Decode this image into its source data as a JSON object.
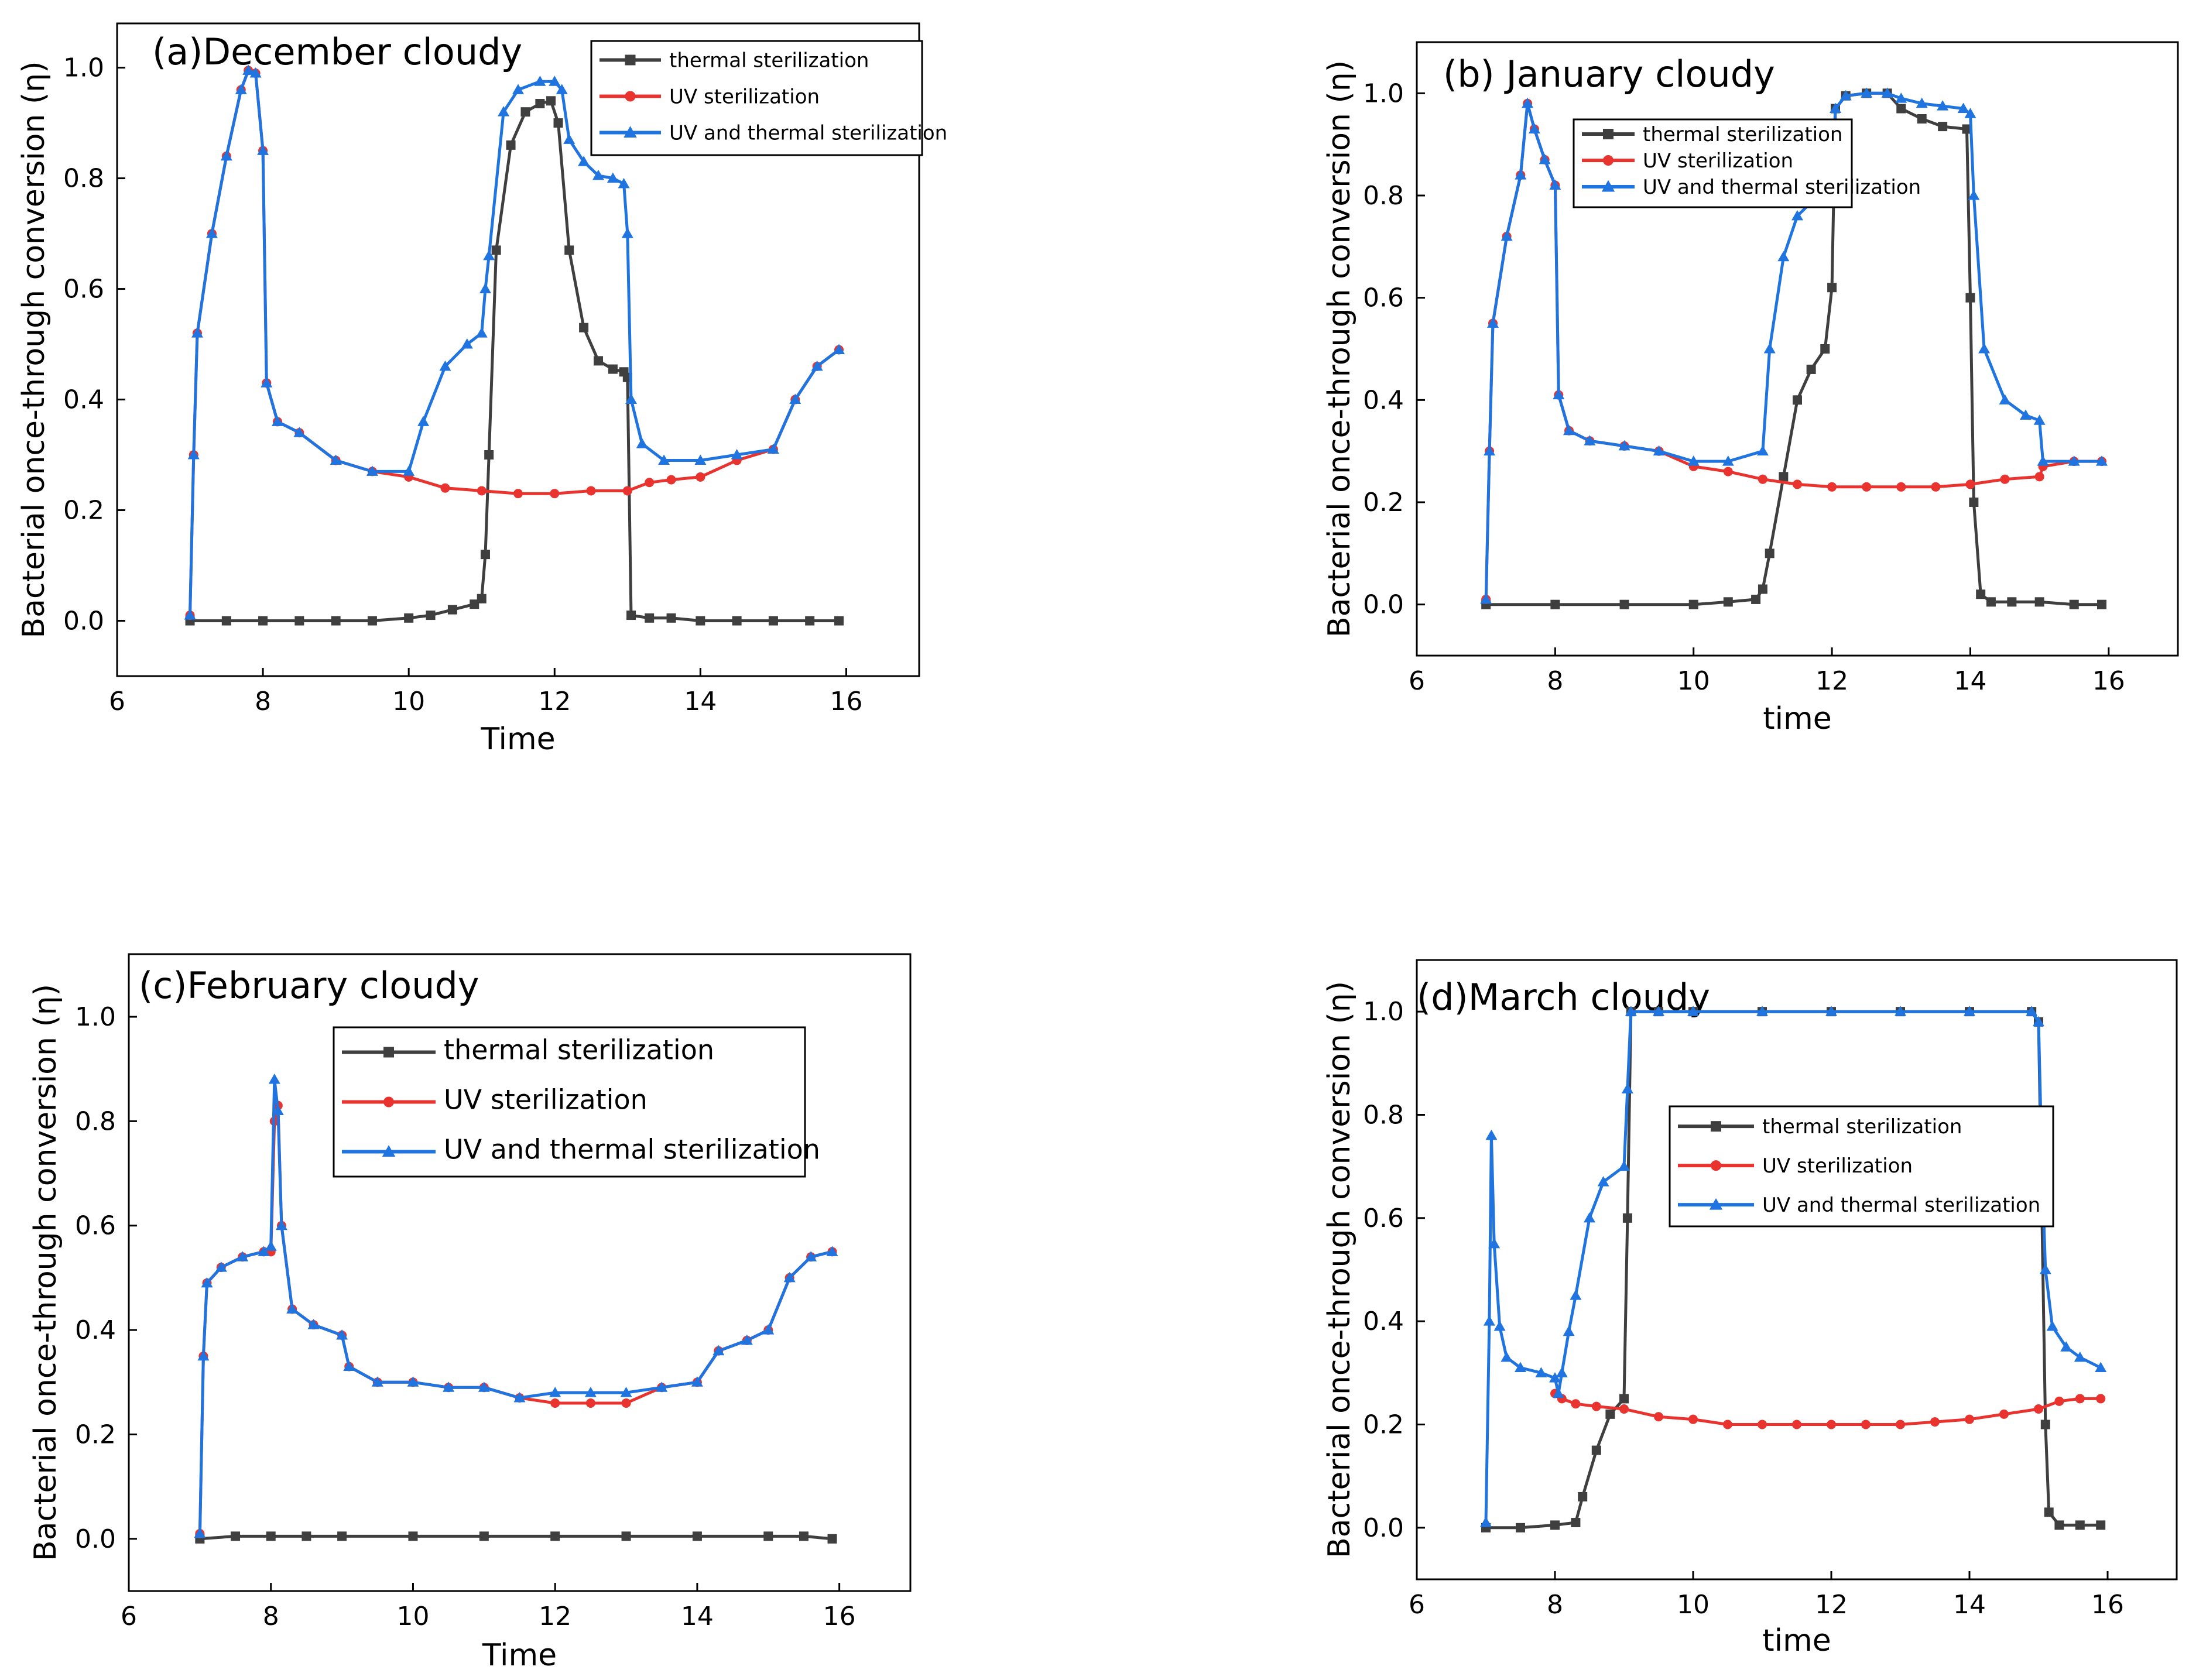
{
  "chart_data": [
    {
      "type": "line",
      "title": "(a)December cloudy",
      "xlabel": "Time",
      "ylabel": "Bacterial once-through conversion  (η)",
      "xlim": [
        6,
        17
      ],
      "ylim": [
        -0.1,
        1.08
      ],
      "xticks": [
        "6",
        "8",
        "10",
        "12",
        "14",
        "16"
      ],
      "yticks": [
        "0.0",
        "0.2",
        "0.4",
        "0.6",
        "0.8",
        "1.0"
      ],
      "legend_labels": [
        "thermal sterilization",
        "UV sterilization",
        "UV and thermal sterilization"
      ],
      "legend_position": "top-right",
      "series": [
        {
          "name": "thermal sterilization",
          "color": "#3f3f3f",
          "marker": "square",
          "x": [
            7.0,
            7.5,
            8.0,
            8.5,
            9.0,
            9.5,
            10.0,
            10.3,
            10.6,
            10.9,
            11.0,
            11.05,
            11.1,
            11.2,
            11.4,
            11.6,
            11.8,
            11.95,
            12.05,
            12.2,
            12.4,
            12.6,
            12.8,
            12.95,
            13.0,
            13.05,
            13.3,
            13.6,
            14.0,
            14.5,
            15.0,
            15.5,
            15.9
          ],
          "y": [
            0.0,
            0.0,
            0.0,
            0.0,
            0.0,
            0.0,
            0.005,
            0.01,
            0.02,
            0.03,
            0.04,
            0.12,
            0.3,
            0.67,
            0.86,
            0.92,
            0.935,
            0.94,
            0.9,
            0.67,
            0.53,
            0.47,
            0.455,
            0.45,
            0.44,
            0.01,
            0.005,
            0.005,
            0.0,
            0.0,
            0.0,
            0.0,
            0.0
          ]
        },
        {
          "name": "UV sterilization",
          "color": "#e8332f",
          "marker": "circle",
          "x": [
            7.0,
            7.05,
            7.1,
            7.3,
            7.5,
            7.7,
            7.8,
            7.9,
            8.0,
            8.05,
            8.2,
            8.5,
            9.0,
            9.5,
            10.0,
            10.5,
            11.0,
            11.5,
            12.0,
            12.5,
            13.0,
            13.3,
            13.6,
            14.0,
            14.5,
            15.0,
            15.3,
            15.6,
            15.9
          ],
          "y": [
            0.01,
            0.3,
            0.52,
            0.7,
            0.84,
            0.96,
            0.995,
            0.99,
            0.85,
            0.43,
            0.36,
            0.34,
            0.29,
            0.27,
            0.26,
            0.24,
            0.235,
            0.23,
            0.23,
            0.235,
            0.235,
            0.25,
            0.255,
            0.26,
            0.29,
            0.31,
            0.4,
            0.46,
            0.49
          ]
        },
        {
          "name": "UV and thermal sterilization",
          "color": "#1f74e0",
          "marker": "triangle",
          "x": [
            7.0,
            7.05,
            7.1,
            7.3,
            7.5,
            7.7,
            7.8,
            7.9,
            8.0,
            8.05,
            8.2,
            8.5,
            9.0,
            9.5,
            10.0,
            10.2,
            10.5,
            10.8,
            11.0,
            11.05,
            11.1,
            11.3,
            11.5,
            11.8,
            12.0,
            12.1,
            12.2,
            12.4,
            12.6,
            12.8,
            12.95,
            13.0,
            13.05,
            13.2,
            13.5,
            14.0,
            14.5,
            15.0,
            15.3,
            15.6,
            15.9
          ],
          "y": [
            0.01,
            0.3,
            0.52,
            0.7,
            0.84,
            0.96,
            0.995,
            0.99,
            0.85,
            0.43,
            0.36,
            0.34,
            0.29,
            0.27,
            0.27,
            0.36,
            0.46,
            0.5,
            0.52,
            0.6,
            0.66,
            0.92,
            0.96,
            0.975,
            0.975,
            0.96,
            0.87,
            0.83,
            0.805,
            0.8,
            0.79,
            0.7,
            0.4,
            0.32,
            0.29,
            0.29,
            0.3,
            0.31,
            0.4,
            0.46,
            0.49
          ]
        }
      ]
    },
    {
      "type": "line",
      "title": "(b) January cloudy",
      "xlabel": "time",
      "ylabel": "Bacterial once-through conversion  (η)",
      "xlim": [
        6,
        17
      ],
      "ylim": [
        -0.1,
        1.1
      ],
      "xticks": [
        "6",
        "8",
        "10",
        "12",
        "14",
        "16"
      ],
      "yticks": [
        "0.0",
        "0.2",
        "0.4",
        "0.6",
        "0.8",
        "1.0"
      ],
      "legend_labels": [
        "thermal sterilization",
        "UV sterilization",
        "UV and thermal sterilization"
      ],
      "legend_position": "top-center",
      "series": [
        {
          "name": "thermal sterilization",
          "color": "#3f3f3f",
          "marker": "square",
          "x": [
            7.0,
            8.0,
            9.0,
            10.0,
            10.5,
            10.9,
            11.0,
            11.1,
            11.3,
            11.5,
            11.7,
            11.9,
            12.0,
            12.05,
            12.2,
            12.5,
            12.8,
            13.0,
            13.3,
            13.6,
            13.95,
            14.0,
            14.05,
            14.15,
            14.3,
            14.6,
            15.0,
            15.5,
            15.9
          ],
          "y": [
            0.0,
            0.0,
            0.0,
            0.0,
            0.005,
            0.01,
            0.03,
            0.1,
            0.25,
            0.4,
            0.46,
            0.5,
            0.62,
            0.97,
            0.995,
            1.0,
            1.0,
            0.97,
            0.95,
            0.935,
            0.93,
            0.6,
            0.2,
            0.02,
            0.005,
            0.005,
            0.005,
            0.0,
            0.0
          ]
        },
        {
          "name": "UV sterilization",
          "color": "#e8332f",
          "marker": "circle",
          "x": [
            7.0,
            7.05,
            7.1,
            7.3,
            7.5,
            7.6,
            7.7,
            7.85,
            8.0,
            8.05,
            8.2,
            8.5,
            9.0,
            9.5,
            10.0,
            10.5,
            11.0,
            11.5,
            12.0,
            12.5,
            13.0,
            13.5,
            14.0,
            14.5,
            15.0,
            15.05,
            15.5,
            15.9
          ],
          "y": [
            0.01,
            0.3,
            0.55,
            0.72,
            0.84,
            0.98,
            0.93,
            0.87,
            0.82,
            0.41,
            0.34,
            0.32,
            0.31,
            0.3,
            0.27,
            0.26,
            0.245,
            0.235,
            0.23,
            0.23,
            0.23,
            0.23,
            0.235,
            0.245,
            0.25,
            0.27,
            0.28,
            0.28
          ]
        },
        {
          "name": "UV and thermal sterilization",
          "color": "#1f74e0",
          "marker": "triangle",
          "x": [
            7.0,
            7.05,
            7.1,
            7.3,
            7.5,
            7.6,
            7.7,
            7.85,
            8.0,
            8.05,
            8.2,
            8.5,
            9.0,
            9.5,
            10.0,
            10.5,
            11.0,
            11.1,
            11.3,
            11.5,
            11.8,
            12.0,
            12.05,
            12.2,
            12.5,
            12.8,
            13.0,
            13.3,
            13.6,
            13.9,
            14.0,
            14.05,
            14.2,
            14.5,
            14.8,
            15.0,
            15.05,
            15.5,
            15.9
          ],
          "y": [
            0.01,
            0.3,
            0.55,
            0.72,
            0.84,
            0.98,
            0.93,
            0.87,
            0.82,
            0.41,
            0.34,
            0.32,
            0.31,
            0.3,
            0.28,
            0.28,
            0.3,
            0.5,
            0.68,
            0.76,
            0.8,
            0.82,
            0.97,
            0.995,
            1.0,
            1.0,
            0.99,
            0.98,
            0.975,
            0.97,
            0.96,
            0.8,
            0.5,
            0.4,
            0.37,
            0.36,
            0.28,
            0.28,
            0.28
          ]
        }
      ]
    },
    {
      "type": "line",
      "title": "(c)February cloudy",
      "xlabel": "Time",
      "ylabel": "Bacterial once-through conversion  (η)",
      "xlim": [
        6,
        17
      ],
      "ylim": [
        -0.1,
        1.12
      ],
      "xticks": [
        "6",
        "8",
        "10",
        "12",
        "14",
        "16"
      ],
      "yticks": [
        "0.0",
        "0.2",
        "0.4",
        "0.6",
        "0.8",
        "1.0"
      ],
      "legend_labels": [
        "thermal sterilization",
        "UV sterilization",
        "UV and thermal sterilization"
      ],
      "legend_position": "top-right",
      "series": [
        {
          "name": "thermal sterilization",
          "color": "#3f3f3f",
          "marker": "square",
          "x": [
            7.0,
            7.5,
            8.0,
            8.5,
            9.0,
            10.0,
            11.0,
            12.0,
            13.0,
            14.0,
            15.0,
            15.5,
            15.9
          ],
          "y": [
            0.0,
            0.005,
            0.005,
            0.005,
            0.005,
            0.005,
            0.005,
            0.005,
            0.005,
            0.005,
            0.005,
            0.005,
            0.0
          ]
        },
        {
          "name": "UV sterilization",
          "color": "#e8332f",
          "marker": "circle",
          "x": [
            7.0,
            7.05,
            7.1,
            7.3,
            7.6,
            7.9,
            8.0,
            8.05,
            8.1,
            8.15,
            8.3,
            8.6,
            9.0,
            9.1,
            9.5,
            10.0,
            10.5,
            11.0,
            11.5,
            12.0,
            12.5,
            13.0,
            13.5,
            14.0,
            14.3,
            14.7,
            15.0,
            15.3,
            15.6,
            15.9
          ],
          "y": [
            0.01,
            0.35,
            0.49,
            0.52,
            0.54,
            0.55,
            0.55,
            0.8,
            0.83,
            0.6,
            0.44,
            0.41,
            0.39,
            0.33,
            0.3,
            0.3,
            0.29,
            0.29,
            0.27,
            0.26,
            0.26,
            0.26,
            0.29,
            0.3,
            0.36,
            0.38,
            0.4,
            0.5,
            0.54,
            0.55
          ]
        },
        {
          "name": "UV and thermal sterilization",
          "color": "#1f74e0",
          "marker": "triangle",
          "x": [
            7.0,
            7.05,
            7.1,
            7.3,
            7.6,
            7.9,
            8.0,
            8.05,
            8.1,
            8.15,
            8.3,
            8.6,
            9.0,
            9.1,
            9.5,
            10.0,
            10.5,
            11.0,
            11.5,
            12.0,
            12.5,
            13.0,
            13.5,
            14.0,
            14.3,
            14.7,
            15.0,
            15.3,
            15.6,
            15.9
          ],
          "y": [
            0.01,
            0.35,
            0.49,
            0.52,
            0.54,
            0.55,
            0.56,
            0.88,
            0.82,
            0.6,
            0.44,
            0.41,
            0.39,
            0.33,
            0.3,
            0.3,
            0.29,
            0.29,
            0.27,
            0.28,
            0.28,
            0.28,
            0.29,
            0.3,
            0.36,
            0.38,
            0.4,
            0.5,
            0.54,
            0.55
          ]
        }
      ]
    },
    {
      "type": "line",
      "title": "(d)March cloudy",
      "xlabel": "time",
      "ylabel": "Bacterial once-through conversion  (η)",
      "xlim": [
        6,
        17
      ],
      "ylim": [
        -0.1,
        1.1
      ],
      "xticks": [
        "6",
        "8",
        "10",
        "12",
        "14",
        "16"
      ],
      "yticks": [
        "0.0",
        "0.2",
        "0.4",
        "0.6",
        "0.8",
        "1.0"
      ],
      "legend_labels": [
        "thermal sterilization",
        "UV sterilization",
        "UV and thermal sterilization"
      ],
      "legend_position": "center-right",
      "series": [
        {
          "name": "thermal sterilization",
          "color": "#3f3f3f",
          "marker": "square",
          "x": [
            7.0,
            7.5,
            8.0,
            8.3,
            8.4,
            8.6,
            8.8,
            9.0,
            9.05,
            9.1,
            9.5,
            10.0,
            11.0,
            12.0,
            13.0,
            14.0,
            14.9,
            15.0,
            15.05,
            15.1,
            15.15,
            15.3,
            15.6,
            15.9
          ],
          "y": [
            0.0,
            0.0,
            0.005,
            0.01,
            0.06,
            0.15,
            0.22,
            0.25,
            0.6,
            1.0,
            1.0,
            1.0,
            1.0,
            1.0,
            1.0,
            1.0,
            1.0,
            0.98,
            0.6,
            0.2,
            0.03,
            0.005,
            0.005,
            0.005
          ]
        },
        {
          "name": "UV sterilization",
          "color": "#e8332f",
          "marker": "circle",
          "x": [
            8.0,
            8.1,
            8.3,
            8.6,
            9.0,
            9.5,
            10.0,
            10.5,
            11.0,
            11.5,
            12.0,
            12.5,
            13.0,
            13.5,
            14.0,
            14.5,
            15.0,
            15.3,
            15.6,
            15.9
          ],
          "y": [
            0.26,
            0.25,
            0.24,
            0.235,
            0.23,
            0.215,
            0.21,
            0.2,
            0.2,
            0.2,
            0.2,
            0.2,
            0.2,
            0.205,
            0.21,
            0.22,
            0.23,
            0.245,
            0.25,
            0.25
          ]
        },
        {
          "name": "UV and thermal sterilization",
          "color": "#1f74e0",
          "marker": "triangle",
          "x": [
            7.0,
            7.05,
            7.08,
            7.12,
            7.2,
            7.3,
            7.5,
            7.8,
            8.0,
            8.05,
            8.1,
            8.2,
            8.3,
            8.5,
            8.7,
            9.0,
            9.05,
            9.1,
            9.5,
            10.0,
            11.0,
            12.0,
            13.0,
            14.0,
            14.9,
            15.0,
            15.05,
            15.1,
            15.2,
            15.4,
            15.6,
            15.9
          ],
          "y": [
            0.01,
            0.4,
            0.76,
            0.55,
            0.39,
            0.33,
            0.31,
            0.3,
            0.29,
            0.26,
            0.3,
            0.38,
            0.45,
            0.6,
            0.67,
            0.7,
            0.85,
            1.0,
            1.0,
            1.0,
            1.0,
            1.0,
            1.0,
            1.0,
            1.0,
            0.98,
            0.7,
            0.5,
            0.39,
            0.35,
            0.33,
            0.31
          ]
        }
      ]
    }
  ]
}
